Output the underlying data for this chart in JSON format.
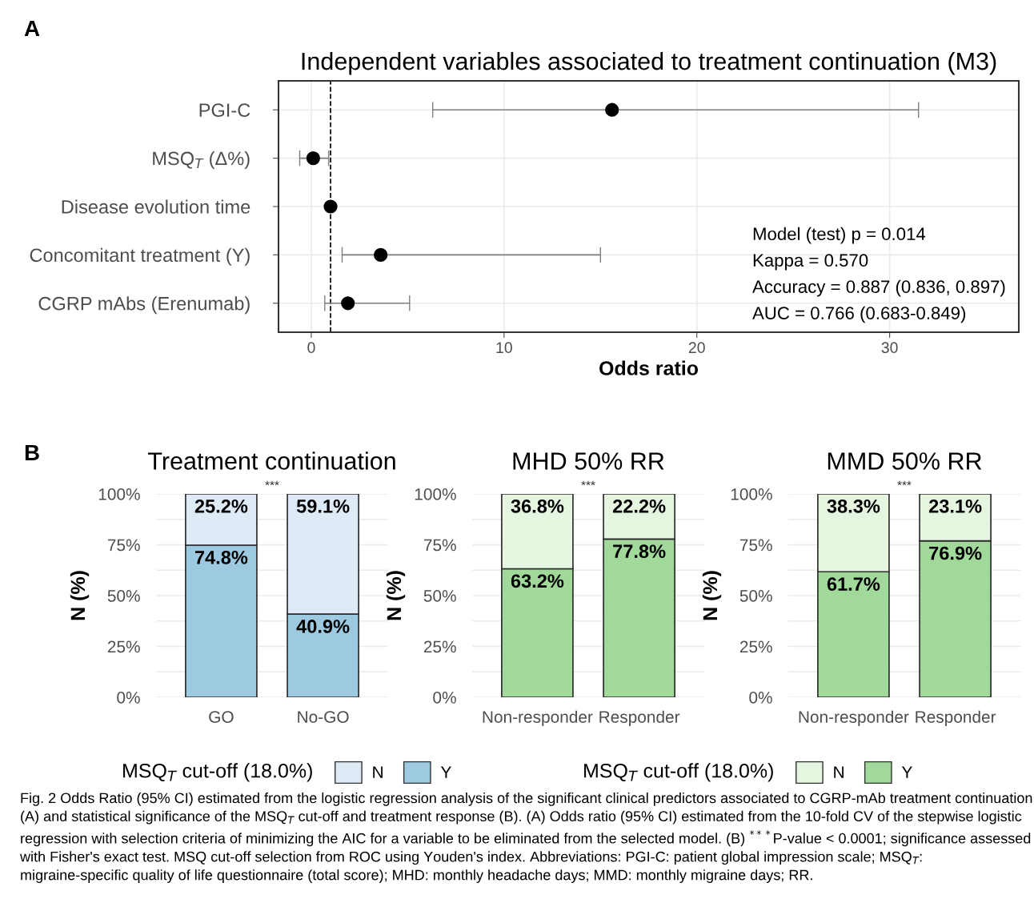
{
  "chart_data": [
    {
      "type": "scatter",
      "orientation": "horizontal",
      "title": "Independent variables associated to treatment continuation (M3)",
      "xlabel": "Odds ratio",
      "categories": [
        "PGI-C",
        "MSQ$_{T}$ (Δ%)",
        "Disease evolution time",
        "Concomitant treatment (Y)",
        "CGRP mAbs (Erenumab)"
      ],
      "values": [
        15.6,
        0.1,
        1.0,
        3.6,
        1.9
      ],
      "errors": [
        [
          6.3,
          31.5
        ],
        [
          -0.6,
          0.9
        ],
        null,
        [
          1.6,
          15.0
        ],
        [
          0.7,
          5.1
        ]
      ],
      "color": "#000000",
      "marker": "circle",
      "xlim": [
        -1.7,
        36.7
      ],
      "xticks": [
        0,
        10,
        20,
        30
      ],
      "grid": true,
      "ref_lines": [
        {
          "axis": "x",
          "value": 1,
          "line_style": "dashed",
          "color": "#000000"
        }
      ],
      "annotations": [
        "A",
        "Model (test) p = 0.014",
        "Kappa = 0.570",
        "Accuracy = 0.887 (0.836, 0.897)",
        "AUC = 0.766 (0.683-0.849)"
      ]
    },
    {
      "type": "bar",
      "stacked": true,
      "title": "Treatment continuation",
      "ylabel": "N (%)",
      "categories": [
        "GO",
        "No-GO"
      ],
      "series": [
        {
          "name": "Y",
          "color": "#9ecae1",
          "values": [
            74.8,
            40.9
          ],
          "value_labels": [
            "74.8%",
            "40.9%"
          ]
        },
        {
          "name": "N",
          "color": "#deebf7",
          "values": [
            25.2,
            59.1
          ],
          "value_labels": [
            "25.2%",
            "59.1%"
          ]
        }
      ],
      "ylim": [
        0,
        100
      ],
      "yticks": [
        {
          "value": 0,
          "label": "0%"
        },
        {
          "value": 25,
          "label": "25%"
        },
        {
          "value": 50,
          "label": "50%"
        },
        {
          "value": 75,
          "label": "75%"
        },
        {
          "value": 100,
          "label": "100%"
        }
      ],
      "grid": true,
      "legend": "bottom",
      "legend_title": "MSQ$_{T}$ cut-off (18.0%)",
      "annotations": [
        "***",
        "B"
      ]
    },
    {
      "type": "bar",
      "stacked": true,
      "title": "MHD 50% RR",
      "ylabel": "N (%)",
      "categories": [
        "Non-responder",
        "Responder"
      ],
      "series": [
        {
          "name": "Y",
          "color": "#a1d99b",
          "values": [
            63.2,
            77.8
          ],
          "value_labels": [
            "63.2%",
            "77.8%"
          ]
        },
        {
          "name": "N",
          "color": "#e5f5e0",
          "values": [
            36.8,
            22.2
          ],
          "value_labels": [
            "36.8%",
            "22.2%"
          ]
        }
      ],
      "ylim": [
        0,
        100
      ],
      "yticks": [
        {
          "value": 0,
          "label": "0%"
        },
        {
          "value": 25,
          "label": "25%"
        },
        {
          "value": 50,
          "label": "50%"
        },
        {
          "value": 75,
          "label": "75%"
        },
        {
          "value": 100,
          "label": "100%"
        }
      ],
      "grid": true,
      "legend": "bottom",
      "legend_title": "MSQ$_{T}$ cut-off (18.0%)",
      "annotations": [
        "***"
      ]
    },
    {
      "type": "bar",
      "stacked": true,
      "title": "MMD 50% RR",
      "ylabel": "N (%)",
      "categories": [
        "Non-responder",
        "Responder"
      ],
      "series": [
        {
          "color": "#a1d99b",
          "values": [
            61.7,
            76.9
          ],
          "value_labels": [
            "61.7%",
            "76.9%"
          ]
        },
        {
          "color": "#e5f5e0",
          "values": [
            38.3,
            23.1
          ],
          "value_labels": [
            "38.3%",
            "23.1%"
          ]
        }
      ],
      "ylim": [
        0,
        100
      ],
      "yticks": [
        {
          "value": 0,
          "label": "0%"
        },
        {
          "value": 25,
          "label": "25%"
        },
        {
          "value": 50,
          "label": "50%"
        },
        {
          "value": 75,
          "label": "75%"
        },
        {
          "value": 100,
          "label": "100%"
        }
      ],
      "grid": true,
      "annotations": [
        "***",
        "Fig. 2 Odds Ratio (95% CI) estimated from the logistic regression analysis of the significant clinical predictors associated to CGRP-mAb treatment continuation (A) and statistical significance of the MSQ$_{T}$ cut-off and treatment response (B). (A) Odds ratio (95% CI) estimated from the 10-fold CV of the stepwise logistic regression with selection criteria of minimizing the AIC for a variable to be eliminated from the selected model. (B) $^{***}$P-value < 0.0001; significance assessed with Fisher's exact test. MSQ cut-off selection from ROC using Youden's index. Abbreviations: PGI-C: patient global impression scale; MSQ$_{T}$: migraine-specific quality of life questionnaire (total score); MHD: monthly headache days; MMD: monthly migraine days; RR."
      ]
    }
  ]
}
